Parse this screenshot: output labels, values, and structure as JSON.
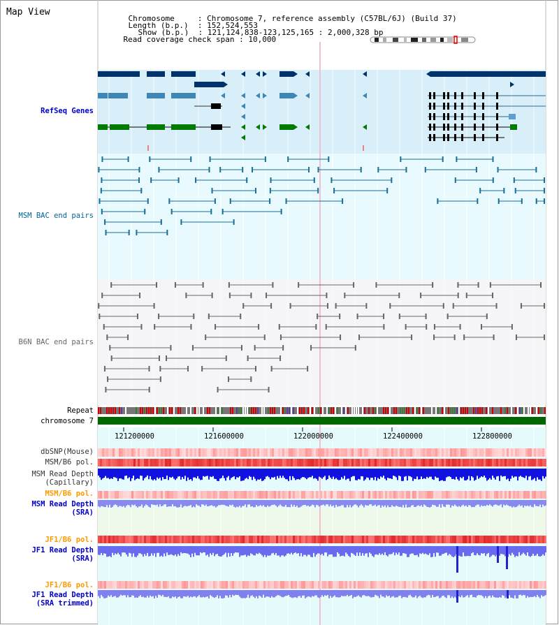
{
  "title": "Map View",
  "info": {
    "chromosome_key": "Chromosome",
    "chromosome_value": "Chromosome 7, reference assembly (C57BL/6J) (Build 37)",
    "length_key": "Length (b.p.)",
    "length_value": "152,524,553",
    "show_key": "Show (b.p.)",
    "show_value": "121,124,838-123,125,165 : 2,000,328 bp",
    "span_key": "Read coverage check span",
    "span_value": "10,000"
  },
  "tracks": {
    "refseq": "RefSeq Genes",
    "msm_bac": "MSM BAC end pairs",
    "b6n_bac": "B6N BAC end pairs",
    "repeat": "Repeat",
    "chromosome": "chromosome 7",
    "dbsnp": "dbSNP(Mouse)",
    "msm_b6_pol_1": "MSM/B6 pol.",
    "msm_read_depth_cap_1": "MSM Read Depth",
    "msm_read_depth_cap_2": "(Capillary)",
    "msm_b6_pol_2": "MSM/B6 pol.",
    "msm_read_depth_sra_1": "MSM Read Depth",
    "msm_read_depth_sra_2": "(SRA)",
    "jf1_b6_pol_1": "JF1/B6 pol.",
    "jf1_read_depth_sra_1": "JF1 Read Depth",
    "jf1_read_depth_sra_2": "(SRA)",
    "jf1_b6_pol_2": "JF1/B6 pol.",
    "jf1_read_depth_trim_1": "JF1 Read Depth",
    "jf1_read_depth_trim_2": "(SRA trimmed)"
  },
  "axis": {
    "ticks": [
      "121200000",
      "121600000",
      "122000000",
      "122400000",
      "122800000"
    ]
  },
  "colors": {
    "refseq_label": "#0000cc",
    "msm_label": "#006699",
    "b6n_label": "#666666",
    "orange_label": "#ff9900",
    "blue_label": "#0000cc",
    "refseq_bg": "#d8effa",
    "msm_bg": "#e8fafd",
    "b6n_bg": "#f5f5f8",
    "chromosome_green": "#006600"
  }
}
